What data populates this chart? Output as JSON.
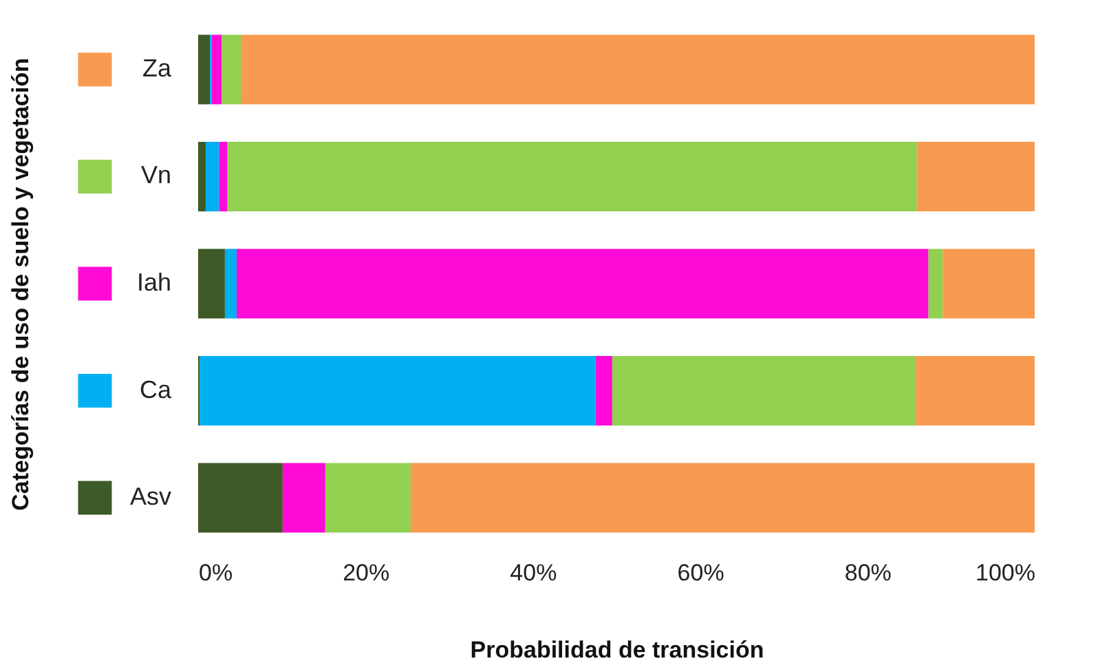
{
  "chart_data": {
    "type": "bar",
    "orientation": "horizontal",
    "stacked": true,
    "xlabel": "Probabilidad de transición",
    "ylabel": "Categorías de uso de suelo y vegetación",
    "categories": [
      "Za",
      "Vn",
      "Iah",
      "Ca",
      "Asv"
    ],
    "series": [
      {
        "color": "#3d5a27",
        "values": [
          1.4,
          0.9,
          3.2,
          0.2,
          10.1
        ]
      },
      {
        "color": "#00b0f0",
        "values": [
          0.2,
          1.6,
          1.4,
          47.3,
          0
        ]
      },
      {
        "color": "#ff0ad6",
        "values": [
          1.2,
          1.0,
          82.7,
          2.0,
          5.1
        ]
      },
      {
        "color": "#92d050",
        "values": [
          2.3,
          82.4,
          1.7,
          36.2,
          10.2
        ]
      },
      {
        "color": "#f79b52",
        "values": [
          94.9,
          14.1,
          11.0,
          14.3,
          74.6
        ]
      }
    ],
    "xlim": [
      0,
      100
    ],
    "xticks": [
      {
        "value": 0,
        "label": "0%"
      },
      {
        "value": 20,
        "label": "20%"
      },
      {
        "value": 40,
        "label": "40%"
      },
      {
        "value": 60,
        "label": "60%"
      },
      {
        "value": 80,
        "label": "80%"
      },
      {
        "value": 100,
        "label": "100%"
      }
    ],
    "grid": false
  }
}
